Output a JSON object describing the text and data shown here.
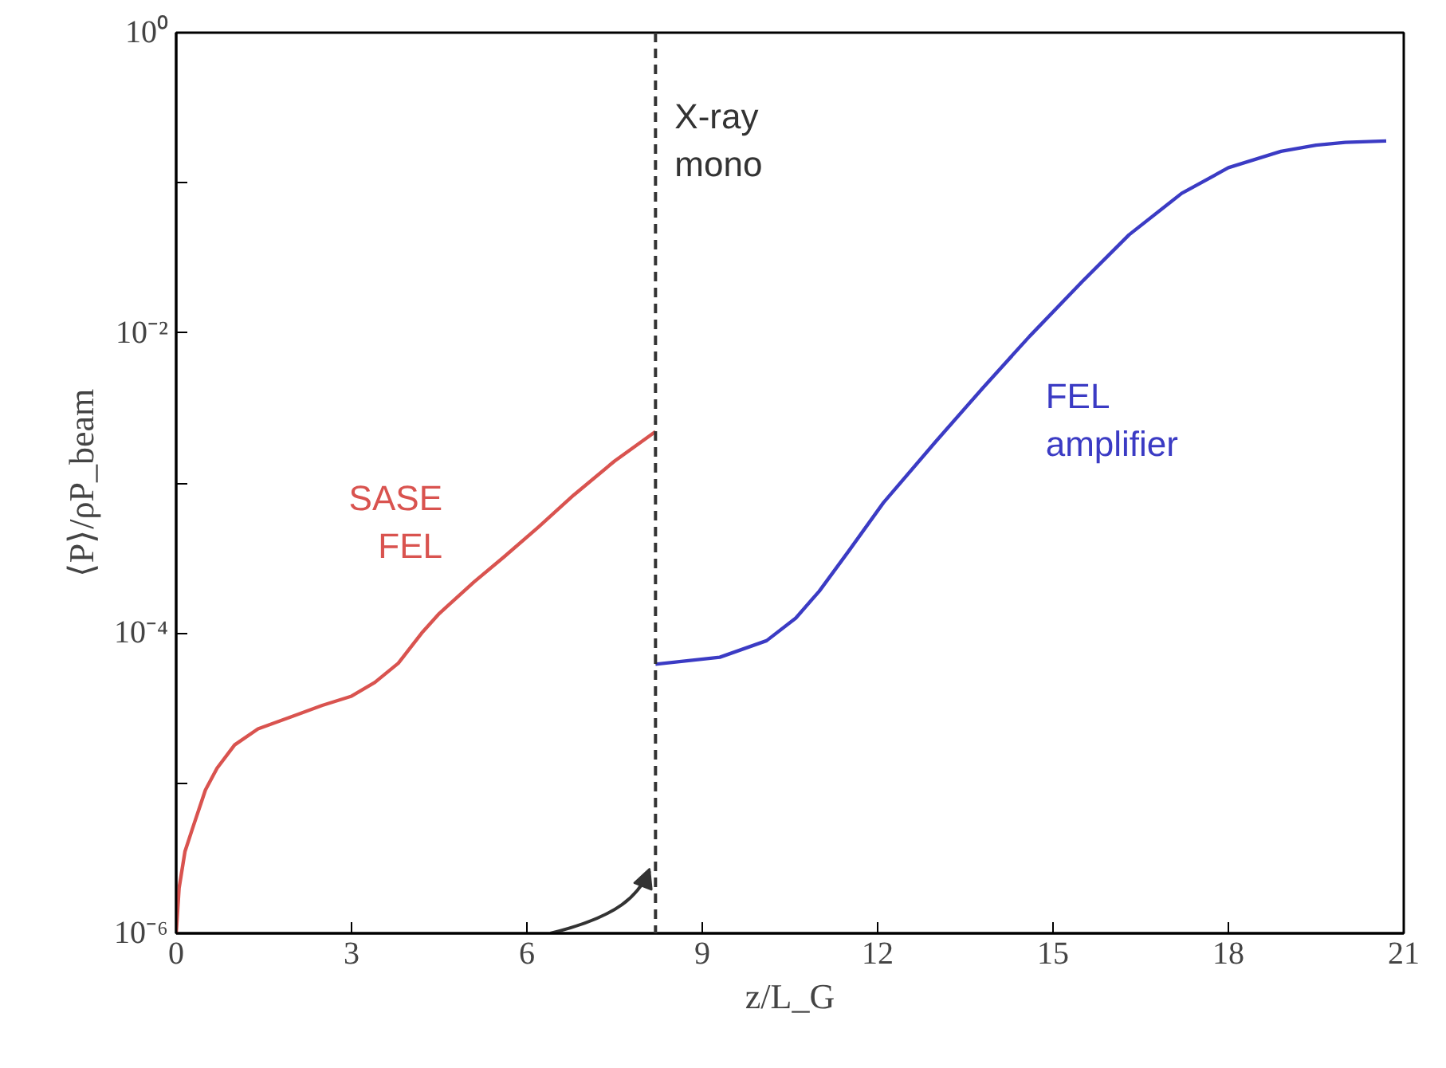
{
  "chart_data": {
    "type": "line",
    "xlabel": "z/L_G",
    "ylabel": "⟨P⟩/ρP_beam",
    "log": "y",
    "grid": false,
    "marker": "none",
    "line_style": "solid",
    "xlim": [
      0,
      21
    ],
    "xticks": [
      0,
      3,
      6,
      9,
      12,
      15,
      18,
      21
    ],
    "ylim": [
      1e-06,
      1
    ],
    "yticks": [
      {
        "value": 1e-06,
        "label": "10⁻⁶"
      },
      {
        "value": 1e-05,
        "label": null
      },
      {
        "value": 0.0001,
        "label": "10⁻⁴"
      },
      {
        "value": 0.001,
        "label": null
      },
      {
        "value": 0.01,
        "label": "10⁻²"
      },
      {
        "value": 0.1,
        "label": null
      },
      {
        "value": 1,
        "label": "10⁰"
      }
    ],
    "series": [
      {
        "name": "SASE FEL",
        "color": "#d9534f",
        "x": [
          0,
          0.05,
          0.15,
          0.28,
          0.5,
          0.7,
          1.0,
          1.4,
          2.0,
          2.5,
          3.0,
          3.4,
          3.8,
          4.2,
          4.5,
          5.1,
          5.6,
          6.2,
          6.8,
          7.5,
          8.2
        ],
        "values": [
          1e-06,
          2e-06,
          3.5e-06,
          5e-06,
          9e-06,
          1.26e-05,
          1.8e-05,
          2.3e-05,
          2.8e-05,
          3.3e-05,
          3.8e-05,
          4.7e-05,
          6.3e-05,
          0.0001,
          0.000135,
          0.00022,
          0.00032,
          0.00051,
          0.00083,
          0.0014,
          0.0022
        ]
      },
      {
        "name": "FEL amplifier",
        "color": "#3b3bc4",
        "x": [
          8.2,
          9.3,
          10.1,
          10.6,
          11.0,
          11.5,
          12.1,
          13.0,
          13.8,
          14.6,
          15.5,
          16.3,
          17.2,
          18.0,
          18.9,
          19.5,
          20.0,
          20.7
        ],
        "values": [
          6.2e-05,
          6.9e-05,
          8.9e-05,
          0.000126,
          0.00019,
          0.00035,
          0.00074,
          0.0019,
          0.0043,
          0.0095,
          0.022,
          0.045,
          0.085,
          0.126,
          0.162,
          0.178,
          0.186,
          0.19
        ]
      }
    ],
    "ref_lines": [
      {
        "axis": "x",
        "value": 8.2,
        "label": "X-ray\nmono",
        "color": "#333333",
        "line_style": "dashed"
      }
    ]
  }
}
